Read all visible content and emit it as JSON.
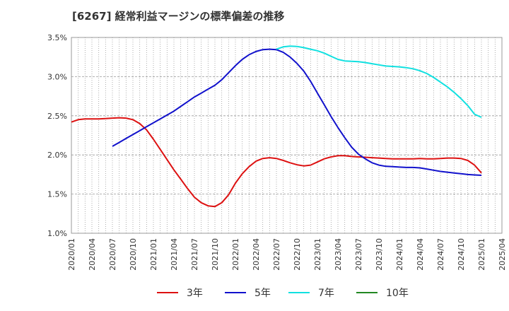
{
  "chart_data": {
    "type": "line",
    "title": "[6267]  経常利益マージンの標準偏差の推移",
    "xlabel": "",
    "ylabel": "",
    "ylim": [
      1.0,
      3.5
    ],
    "y_ticks": [
      "1.0%",
      "1.5%",
      "2.0%",
      "2.5%",
      "3.0%",
      "3.5%"
    ],
    "y_tick_values": [
      1.0,
      1.5,
      2.0,
      2.5,
      3.0,
      3.5
    ],
    "x_range": [
      "2020-01",
      "2025-04"
    ],
    "x_ticks": [
      "2020/01",
      "2020/04",
      "2020/07",
      "2020/10",
      "2021/01",
      "2021/04",
      "2021/07",
      "2021/10",
      "2022/01",
      "2022/04",
      "2022/07",
      "2022/10",
      "2023/01",
      "2023/04",
      "2023/07",
      "2023/10",
      "2024/01",
      "2024/04",
      "2024/07",
      "2024/10",
      "2025/01",
      "2025/04"
    ],
    "x_tick_values": [
      "2020-01",
      "2020-04",
      "2020-07",
      "2020-10",
      "2021-01",
      "2021-04",
      "2021-07",
      "2021-10",
      "2022-01",
      "2022-04",
      "2022-07",
      "2022-10",
      "2023-01",
      "2023-04",
      "2023-07",
      "2023-10",
      "2024-01",
      "2024-04",
      "2024-07",
      "2024-10",
      "2025-01",
      "2025-04"
    ],
    "grid": true,
    "legend_position": "bottom",
    "series": [
      {
        "name": "3年",
        "color": "#dd1111",
        "points": [
          [
            "2020-01",
            2.42
          ],
          [
            "2020-02",
            2.45
          ],
          [
            "2020-03",
            2.46
          ],
          [
            "2020-04",
            2.46
          ],
          [
            "2020-05",
            2.46
          ],
          [
            "2020-06",
            2.465
          ],
          [
            "2020-07",
            2.47
          ],
          [
            "2020-08",
            2.475
          ],
          [
            "2020-09",
            2.47
          ],
          [
            "2020-10",
            2.45
          ],
          [
            "2020-11",
            2.4
          ],
          [
            "2020-12",
            2.32
          ],
          [
            "2021-01",
            2.2
          ],
          [
            "2021-02",
            2.07
          ],
          [
            "2021-03",
            1.94
          ],
          [
            "2021-04",
            1.81
          ],
          [
            "2021-05",
            1.69
          ],
          [
            "2021-06",
            1.57
          ],
          [
            "2021-07",
            1.46
          ],
          [
            "2021-08",
            1.39
          ],
          [
            "2021-09",
            1.35
          ],
          [
            "2021-10",
            1.34
          ],
          [
            "2021-11",
            1.39
          ],
          [
            "2021-12",
            1.49
          ],
          [
            "2022-01",
            1.64
          ],
          [
            "2022-02",
            1.76
          ],
          [
            "2022-03",
            1.85
          ],
          [
            "2022-04",
            1.92
          ],
          [
            "2022-05",
            1.955
          ],
          [
            "2022-06",
            1.965
          ],
          [
            "2022-07",
            1.955
          ],
          [
            "2022-08",
            1.93
          ],
          [
            "2022-09",
            1.9
          ],
          [
            "2022-10",
            1.875
          ],
          [
            "2022-11",
            1.86
          ],
          [
            "2022-12",
            1.87
          ],
          [
            "2023-01",
            1.91
          ],
          [
            "2023-02",
            1.95
          ],
          [
            "2023-03",
            1.975
          ],
          [
            "2023-04",
            1.99
          ],
          [
            "2023-05",
            1.99
          ],
          [
            "2023-06",
            1.98
          ],
          [
            "2023-07",
            1.975
          ],
          [
            "2023-08",
            1.97
          ],
          [
            "2023-09",
            1.965
          ],
          [
            "2023-10",
            1.96
          ],
          [
            "2023-11",
            1.955
          ],
          [
            "2023-12",
            1.95
          ],
          [
            "2024-01",
            1.95
          ],
          [
            "2024-02",
            1.95
          ],
          [
            "2024-03",
            1.95
          ],
          [
            "2024-04",
            1.955
          ],
          [
            "2024-05",
            1.95
          ],
          [
            "2024-06",
            1.95
          ],
          [
            "2024-07",
            1.955
          ],
          [
            "2024-08",
            1.96
          ],
          [
            "2024-09",
            1.96
          ],
          [
            "2024-10",
            1.955
          ],
          [
            "2024-11",
            1.93
          ],
          [
            "2024-12",
            1.87
          ],
          [
            "2025-01",
            1.77
          ]
        ]
      },
      {
        "name": "5年",
        "color": "#1111cc",
        "points": [
          [
            "2020-07",
            2.11
          ],
          [
            "2020-08",
            2.16
          ],
          [
            "2020-09",
            2.21
          ],
          [
            "2020-10",
            2.26
          ],
          [
            "2020-11",
            2.31
          ],
          [
            "2020-12",
            2.36
          ],
          [
            "2021-01",
            2.41
          ],
          [
            "2021-02",
            2.46
          ],
          [
            "2021-03",
            2.51
          ],
          [
            "2021-04",
            2.56
          ],
          [
            "2021-05",
            2.62
          ],
          [
            "2021-06",
            2.68
          ],
          [
            "2021-07",
            2.74
          ],
          [
            "2021-08",
            2.79
          ],
          [
            "2021-09",
            2.84
          ],
          [
            "2021-10",
            2.89
          ],
          [
            "2021-11",
            2.96
          ],
          [
            "2021-12",
            3.05
          ],
          [
            "2022-01",
            3.14
          ],
          [
            "2022-02",
            3.22
          ],
          [
            "2022-03",
            3.28
          ],
          [
            "2022-04",
            3.32
          ],
          [
            "2022-05",
            3.345
          ],
          [
            "2022-06",
            3.35
          ],
          [
            "2022-07",
            3.345
          ],
          [
            "2022-08",
            3.31
          ],
          [
            "2022-09",
            3.25
          ],
          [
            "2022-10",
            3.17
          ],
          [
            "2022-11",
            3.07
          ],
          [
            "2022-12",
            2.94
          ],
          [
            "2023-01",
            2.79
          ],
          [
            "2023-02",
            2.64
          ],
          [
            "2023-03",
            2.49
          ],
          [
            "2023-04",
            2.35
          ],
          [
            "2023-05",
            2.22
          ],
          [
            "2023-06",
            2.1
          ],
          [
            "2023-07",
            2.01
          ],
          [
            "2023-08",
            1.95
          ],
          [
            "2023-09",
            1.9
          ],
          [
            "2023-10",
            1.87
          ],
          [
            "2023-11",
            1.855
          ],
          [
            "2023-12",
            1.85
          ],
          [
            "2024-01",
            1.845
          ],
          [
            "2024-02",
            1.84
          ],
          [
            "2024-03",
            1.84
          ],
          [
            "2024-04",
            1.835
          ],
          [
            "2024-05",
            1.82
          ],
          [
            "2024-06",
            1.805
          ],
          [
            "2024-07",
            1.79
          ],
          [
            "2024-08",
            1.78
          ],
          [
            "2024-09",
            1.77
          ],
          [
            "2024-10",
            1.76
          ],
          [
            "2024-11",
            1.75
          ],
          [
            "2024-12",
            1.745
          ],
          [
            "2025-01",
            1.74
          ]
        ]
      },
      {
        "name": "7年",
        "color": "#11e0e0",
        "points": [
          [
            "2022-07",
            3.35
          ],
          [
            "2022-08",
            3.38
          ],
          [
            "2022-09",
            3.39
          ],
          [
            "2022-10",
            3.385
          ],
          [
            "2022-11",
            3.37
          ],
          [
            "2022-12",
            3.35
          ],
          [
            "2023-01",
            3.33
          ],
          [
            "2023-02",
            3.3
          ],
          [
            "2023-03",
            3.26
          ],
          [
            "2023-04",
            3.22
          ],
          [
            "2023-05",
            3.2
          ],
          [
            "2023-06",
            3.195
          ],
          [
            "2023-07",
            3.19
          ],
          [
            "2023-08",
            3.18
          ],
          [
            "2023-09",
            3.165
          ],
          [
            "2023-10",
            3.15
          ],
          [
            "2023-11",
            3.135
          ],
          [
            "2023-12",
            3.13
          ],
          [
            "2024-01",
            3.125
          ],
          [
            "2024-02",
            3.115
          ],
          [
            "2024-03",
            3.1
          ],
          [
            "2024-04",
            3.075
          ],
          [
            "2024-05",
            3.04
          ],
          [
            "2024-06",
            2.99
          ],
          [
            "2024-07",
            2.93
          ],
          [
            "2024-08",
            2.87
          ],
          [
            "2024-09",
            2.8
          ],
          [
            "2024-10",
            2.72
          ],
          [
            "2024-11",
            2.63
          ],
          [
            "2024-12",
            2.52
          ],
          [
            "2025-01",
            2.48
          ]
        ]
      },
      {
        "name": "10年",
        "color": "#228822",
        "points": []
      }
    ]
  }
}
